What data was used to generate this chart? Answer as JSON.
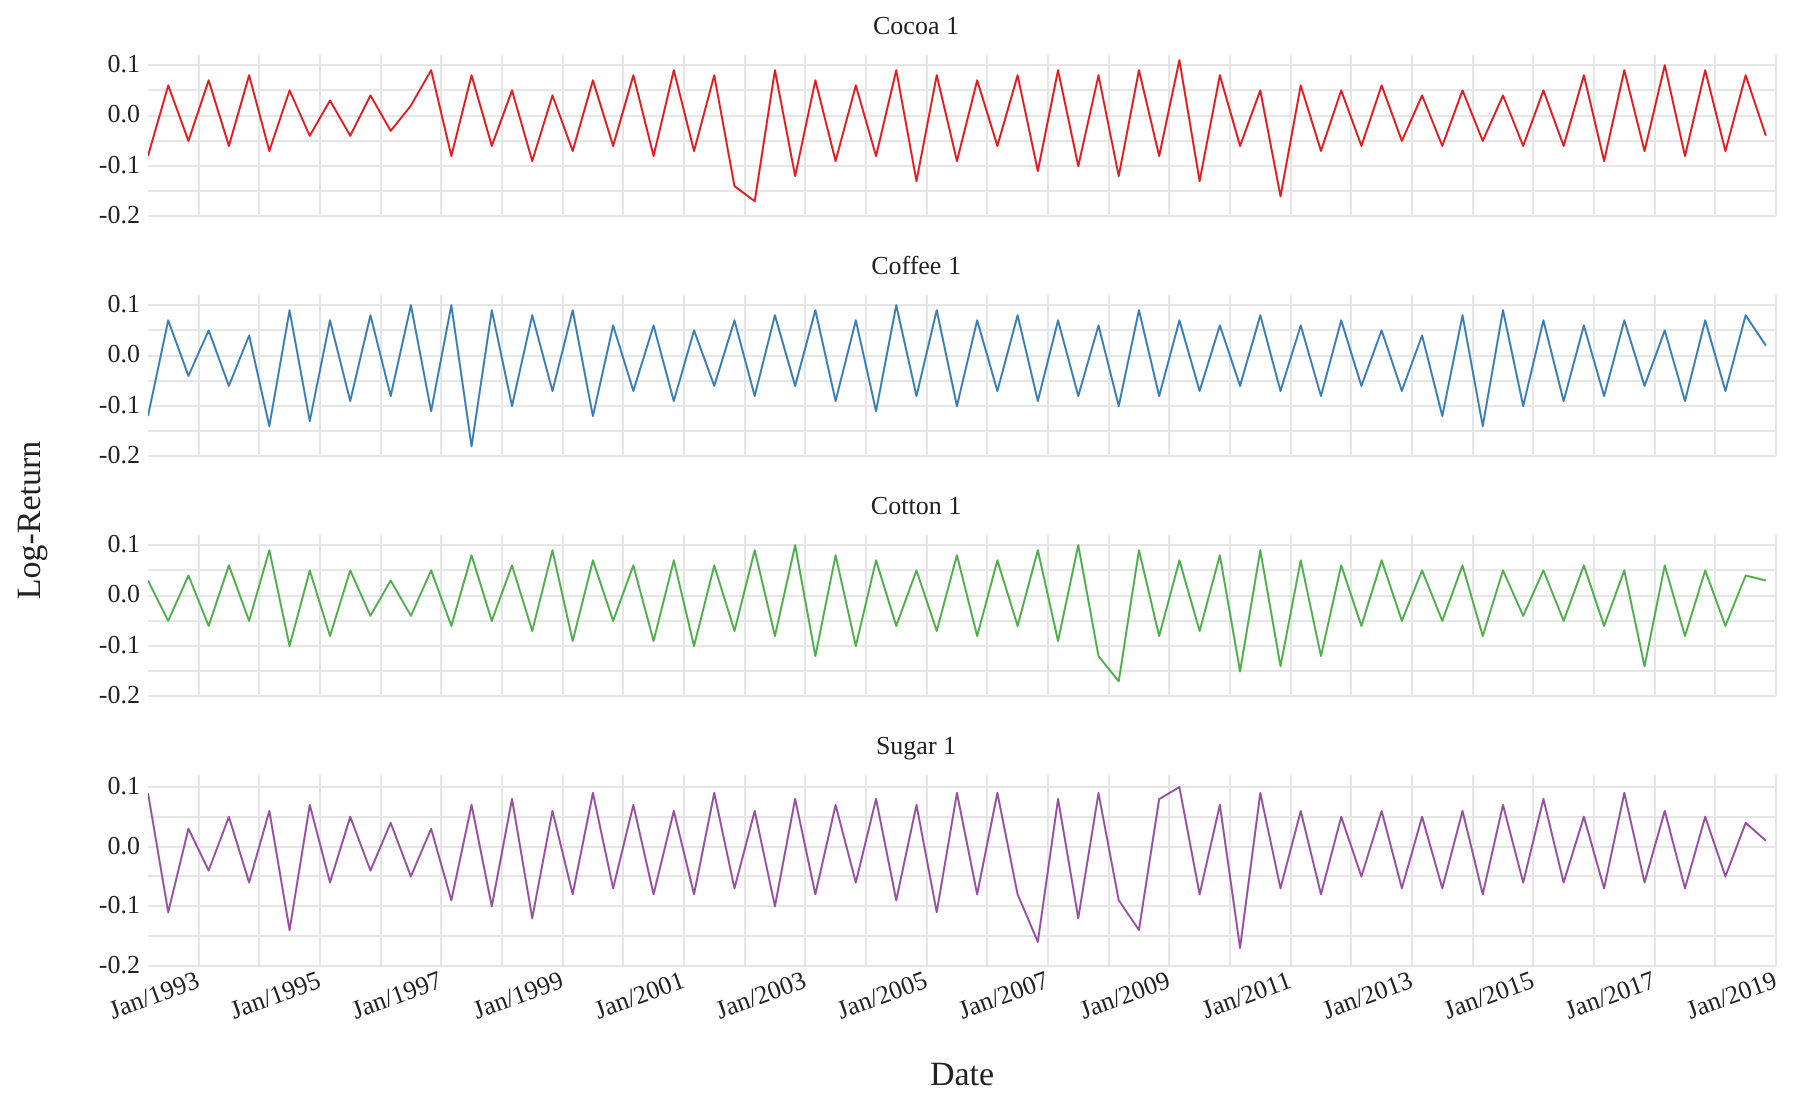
{
  "chart_data": [
    {
      "type": "line",
      "title": "Cocoa 1",
      "color": "#e41a1c",
      "grid": true,
      "tick_labels": "y",
      "x": [
        "1992-03",
        "1992-07",
        "1992-11",
        "1993-03",
        "1993-07",
        "1993-11",
        "1994-03",
        "1994-07",
        "1994-11",
        "1995-03",
        "1995-07",
        "1995-11",
        "1996-03",
        "1996-07",
        "1996-11",
        "1997-03",
        "1997-07",
        "1997-11",
        "1998-03",
        "1998-07",
        "1998-11",
        "1999-03",
        "1999-07",
        "1999-11",
        "2000-03",
        "2000-07",
        "2000-11",
        "2001-03",
        "2001-07",
        "2001-11",
        "2002-03",
        "2002-07",
        "2002-11",
        "2003-03",
        "2003-07",
        "2003-11",
        "2004-03",
        "2004-07",
        "2004-11",
        "2005-03",
        "2005-07",
        "2005-11",
        "2006-03",
        "2006-07",
        "2006-11",
        "2007-03",
        "2007-07",
        "2007-11",
        "2008-03",
        "2008-07",
        "2008-11",
        "2009-03",
        "2009-07",
        "2009-11",
        "2010-03",
        "2010-07",
        "2010-11",
        "2011-03",
        "2011-07",
        "2011-11",
        "2012-03",
        "2012-07",
        "2012-11",
        "2013-03",
        "2013-07",
        "2013-11",
        "2014-03",
        "2014-07",
        "2014-11",
        "2015-03",
        "2015-07",
        "2015-11",
        "2016-03",
        "2016-07",
        "2016-11",
        "2017-03",
        "2017-07",
        "2017-11",
        "2018-03",
        "2018-07",
        "2018-11"
      ],
      "values": [
        -0.08,
        0.06,
        -0.05,
        0.07,
        -0.06,
        0.08,
        -0.07,
        0.05,
        -0.04,
        0.03,
        -0.04,
        0.04,
        -0.03,
        0.02,
        0.09,
        -0.08,
        0.08,
        -0.06,
        0.05,
        -0.09,
        0.04,
        -0.07,
        0.07,
        -0.06,
        0.08,
        -0.08,
        0.09,
        -0.07,
        0.08,
        -0.14,
        -0.17,
        0.09,
        -0.12,
        0.07,
        -0.09,
        0.06,
        -0.08,
        0.09,
        -0.13,
        0.08,
        -0.09,
        0.07,
        -0.06,
        0.08,
        -0.11,
        0.09,
        -0.1,
        0.08,
        -0.12,
        0.09,
        -0.08,
        0.11,
        -0.13,
        0.08,
        -0.06,
        0.05,
        -0.16,
        0.06,
        -0.07,
        0.05,
        -0.06,
        0.06,
        -0.05,
        0.04,
        -0.06,
        0.05,
        -0.05,
        0.04,
        -0.06,
        0.05,
        -0.06,
        0.08,
        -0.09,
        0.09,
        -0.07,
        0.1,
        -0.08,
        0.09,
        -0.07,
        0.08,
        -0.04
      ],
      "xlim": [
        "1992-03",
        "2019-01"
      ],
      "xticks": [
        {
          "value": "1993-01",
          "label": null
        },
        {
          "value": "1994-01",
          "label": null
        },
        {
          "value": "1995-01",
          "label": null
        },
        {
          "value": "1996-01",
          "label": null
        },
        {
          "value": "1997-01",
          "label": null
        },
        {
          "value": "1998-01",
          "label": null
        },
        {
          "value": "1999-01",
          "label": null
        },
        {
          "value": "2000-01",
          "label": null
        },
        {
          "value": "2001-01",
          "label": null
        },
        {
          "value": "2002-01",
          "label": null
        },
        {
          "value": "2003-01",
          "label": null
        },
        {
          "value": "2004-01",
          "label": null
        },
        {
          "value": "2005-01",
          "label": null
        },
        {
          "value": "2006-01",
          "label": null
        },
        {
          "value": "2007-01",
          "label": null
        },
        {
          "value": "2008-01",
          "label": null
        },
        {
          "value": "2009-01",
          "label": null
        },
        {
          "value": "2010-01",
          "label": null
        },
        {
          "value": "2011-01",
          "label": null
        },
        {
          "value": "2012-01",
          "label": null
        },
        {
          "value": "2013-01",
          "label": null
        },
        {
          "value": "2014-01",
          "label": null
        },
        {
          "value": "2015-01",
          "label": null
        },
        {
          "value": "2016-01",
          "label": null
        },
        {
          "value": "2017-01",
          "label": null
        },
        {
          "value": "2018-01",
          "label": null
        },
        {
          "value": "2019-01",
          "label": null
        }
      ],
      "ylim": [
        -0.2,
        0.12
      ],
      "yticks": [
        -0.2,
        {
          "value": -0.15,
          "label": null
        },
        -0.1,
        {
          "value": -0.05,
          "label": null
        },
        {
          "value": 0,
          "label": "0.0"
        },
        {
          "value": 0.05,
          "label": null
        },
        0.1
      ]
    },
    {
      "type": "line",
      "title": "Coffee 1",
      "color": "#377eb8",
      "grid": true,
      "tick_labels": "y",
      "ylabel": "Log-Return",
      "x": [
        "1992-03",
        "1992-07",
        "1992-11",
        "1993-03",
        "1993-07",
        "1993-11",
        "1994-03",
        "1994-07",
        "1994-11",
        "1995-03",
        "1995-07",
        "1995-11",
        "1996-03",
        "1996-07",
        "1996-11",
        "1997-03",
        "1997-07",
        "1997-11",
        "1998-03",
        "1998-07",
        "1998-11",
        "1999-03",
        "1999-07",
        "1999-11",
        "2000-03",
        "2000-07",
        "2000-11",
        "2001-03",
        "2001-07",
        "2001-11",
        "2002-03",
        "2002-07",
        "2002-11",
        "2003-03",
        "2003-07",
        "2003-11",
        "2004-03",
        "2004-07",
        "2004-11",
        "2005-03",
        "2005-07",
        "2005-11",
        "2006-03",
        "2006-07",
        "2006-11",
        "2007-03",
        "2007-07",
        "2007-11",
        "2008-03",
        "2008-07",
        "2008-11",
        "2009-03",
        "2009-07",
        "2009-11",
        "2010-03",
        "2010-07",
        "2010-11",
        "2011-03",
        "2011-07",
        "2011-11",
        "2012-03",
        "2012-07",
        "2012-11",
        "2013-03",
        "2013-07",
        "2013-11",
        "2014-03",
        "2014-07",
        "2014-11",
        "2015-03",
        "2015-07",
        "2015-11",
        "2016-03",
        "2016-07",
        "2016-11",
        "2017-03",
        "2017-07",
        "2017-11",
        "2018-03",
        "2018-07",
        "2018-11"
      ],
      "values": [
        -0.12,
        0.07,
        -0.04,
        0.05,
        -0.06,
        0.04,
        -0.14,
        0.09,
        -0.13,
        0.07,
        -0.09,
        0.08,
        -0.08,
        0.1,
        -0.11,
        0.1,
        -0.18,
        0.09,
        -0.1,
        0.08,
        -0.07,
        0.09,
        -0.12,
        0.06,
        -0.07,
        0.06,
        -0.09,
        0.05,
        -0.06,
        0.07,
        -0.08,
        0.08,
        -0.06,
        0.09,
        -0.09,
        0.07,
        -0.11,
        0.1,
        -0.08,
        0.09,
        -0.1,
        0.07,
        -0.07,
        0.08,
        -0.09,
        0.07,
        -0.08,
        0.06,
        -0.1,
        0.09,
        -0.08,
        0.07,
        -0.07,
        0.06,
        -0.06,
        0.08,
        -0.07,
        0.06,
        -0.08,
        0.07,
        -0.06,
        0.05,
        -0.07,
        0.04,
        -0.12,
        0.08,
        -0.14,
        0.09,
        -0.1,
        0.07,
        -0.09,
        0.06,
        -0.08,
        0.07,
        -0.06,
        0.05,
        -0.09,
        0.07,
        -0.07,
        0.08,
        0.02
      ],
      "xlim": [
        "1992-03",
        "2019-01"
      ],
      "xticks": [
        {
          "value": "1993-01",
          "label": null
        },
        {
          "value": "1994-01",
          "label": null
        },
        {
          "value": "1995-01",
          "label": null
        },
        {
          "value": "1996-01",
          "label": null
        },
        {
          "value": "1997-01",
          "label": null
        },
        {
          "value": "1998-01",
          "label": null
        },
        {
          "value": "1999-01",
          "label": null
        },
        {
          "value": "2000-01",
          "label": null
        },
        {
          "value": "2001-01",
          "label": null
        },
        {
          "value": "2002-01",
          "label": null
        },
        {
          "value": "2003-01",
          "label": null
        },
        {
          "value": "2004-01",
          "label": null
        },
        {
          "value": "2005-01",
          "label": null
        },
        {
          "value": "2006-01",
          "label": null
        },
        {
          "value": "2007-01",
          "label": null
        },
        {
          "value": "2008-01",
          "label": null
        },
        {
          "value": "2009-01",
          "label": null
        },
        {
          "value": "2010-01",
          "label": null
        },
        {
          "value": "2011-01",
          "label": null
        },
        {
          "value": "2012-01",
          "label": null
        },
        {
          "value": "2013-01",
          "label": null
        },
        {
          "value": "2014-01",
          "label": null
        },
        {
          "value": "2015-01",
          "label": null
        },
        {
          "value": "2016-01",
          "label": null
        },
        {
          "value": "2017-01",
          "label": null
        },
        {
          "value": "2018-01",
          "label": null
        },
        {
          "value": "2019-01",
          "label": null
        }
      ],
      "ylim": [
        -0.2,
        0.12
      ],
      "yticks": [
        -0.2,
        {
          "value": -0.15,
          "label": null
        },
        -0.1,
        {
          "value": -0.05,
          "label": null
        },
        {
          "value": 0,
          "label": "0.0"
        },
        {
          "value": 0.05,
          "label": null
        },
        0.1
      ]
    },
    {
      "type": "line",
      "title": "Cotton 1",
      "color": "#4daf4a",
      "grid": true,
      "tick_labels": "y",
      "x": [
        "1992-03",
        "1992-07",
        "1992-11",
        "1993-03",
        "1993-07",
        "1993-11",
        "1994-03",
        "1994-07",
        "1994-11",
        "1995-03",
        "1995-07",
        "1995-11",
        "1996-03",
        "1996-07",
        "1996-11",
        "1997-03",
        "1997-07",
        "1997-11",
        "1998-03",
        "1998-07",
        "1998-11",
        "1999-03",
        "1999-07",
        "1999-11",
        "2000-03",
        "2000-07",
        "2000-11",
        "2001-03",
        "2001-07",
        "2001-11",
        "2002-03",
        "2002-07",
        "2002-11",
        "2003-03",
        "2003-07",
        "2003-11",
        "2004-03",
        "2004-07",
        "2004-11",
        "2005-03",
        "2005-07",
        "2005-11",
        "2006-03",
        "2006-07",
        "2006-11",
        "2007-03",
        "2007-07",
        "2007-11",
        "2008-03",
        "2008-07",
        "2008-11",
        "2009-03",
        "2009-07",
        "2009-11",
        "2010-03",
        "2010-07",
        "2010-11",
        "2011-03",
        "2011-07",
        "2011-11",
        "2012-03",
        "2012-07",
        "2012-11",
        "2013-03",
        "2013-07",
        "2013-11",
        "2014-03",
        "2014-07",
        "2014-11",
        "2015-03",
        "2015-07",
        "2015-11",
        "2016-03",
        "2016-07",
        "2016-11",
        "2017-03",
        "2017-07",
        "2017-11",
        "2018-03",
        "2018-07",
        "2018-11"
      ],
      "values": [
        0.03,
        -0.05,
        0.04,
        -0.06,
        0.06,
        -0.05,
        0.09,
        -0.1,
        0.05,
        -0.08,
        0.05,
        -0.04,
        0.03,
        -0.04,
        0.05,
        -0.06,
        0.08,
        -0.05,
        0.06,
        -0.07,
        0.09,
        -0.09,
        0.07,
        -0.05,
        0.06,
        -0.09,
        0.07,
        -0.1,
        0.06,
        -0.07,
        0.09,
        -0.08,
        0.1,
        -0.12,
        0.08,
        -0.1,
        0.07,
        -0.06,
        0.05,
        -0.07,
        0.08,
        -0.08,
        0.07,
        -0.06,
        0.09,
        -0.09,
        0.1,
        -0.12,
        -0.17,
        0.09,
        -0.08,
        0.07,
        -0.07,
        0.08,
        -0.15,
        0.09,
        -0.14,
        0.07,
        -0.12,
        0.06,
        -0.06,
        0.07,
        -0.05,
        0.05,
        -0.05,
        0.06,
        -0.08,
        0.05,
        -0.04,
        0.05,
        -0.05,
        0.06,
        -0.06,
        0.05,
        -0.14,
        0.06,
        -0.08,
        0.05,
        -0.06,
        0.04,
        0.03
      ],
      "xlim": [
        "1992-03",
        "2019-01"
      ],
      "xticks": [
        {
          "value": "1993-01",
          "label": null
        },
        {
          "value": "1994-01",
          "label": null
        },
        {
          "value": "1995-01",
          "label": null
        },
        {
          "value": "1996-01",
          "label": null
        },
        {
          "value": "1997-01",
          "label": null
        },
        {
          "value": "1998-01",
          "label": null
        },
        {
          "value": "1999-01",
          "label": null
        },
        {
          "value": "2000-01",
          "label": null
        },
        {
          "value": "2001-01",
          "label": null
        },
        {
          "value": "2002-01",
          "label": null
        },
        {
          "value": "2003-01",
          "label": null
        },
        {
          "value": "2004-01",
          "label": null
        },
        {
          "value": "2005-01",
          "label": null
        },
        {
          "value": "2006-01",
          "label": null
        },
        {
          "value": "2007-01",
          "label": null
        },
        {
          "value": "2008-01",
          "label": null
        },
        {
          "value": "2009-01",
          "label": null
        },
        {
          "value": "2010-01",
          "label": null
        },
        {
          "value": "2011-01",
          "label": null
        },
        {
          "value": "2012-01",
          "label": null
        },
        {
          "value": "2013-01",
          "label": null
        },
        {
          "value": "2014-01",
          "label": null
        },
        {
          "value": "2015-01",
          "label": null
        },
        {
          "value": "2016-01",
          "label": null
        },
        {
          "value": "2017-01",
          "label": null
        },
        {
          "value": "2018-01",
          "label": null
        },
        {
          "value": "2019-01",
          "label": null
        }
      ],
      "ylim": [
        -0.2,
        0.12
      ],
      "yticks": [
        -0.2,
        {
          "value": -0.15,
          "label": null
        },
        -0.1,
        {
          "value": -0.05,
          "label": null
        },
        {
          "value": 0,
          "label": "0.0"
        },
        {
          "value": 0.05,
          "label": null
        },
        0.1
      ]
    },
    {
      "type": "line",
      "title": "Sugar 1",
      "color": "#984ea3",
      "grid": true,
      "xlabel": "Date",
      "x": [
        "1992-03",
        "1992-07",
        "1992-11",
        "1993-03",
        "1993-07",
        "1993-11",
        "1994-03",
        "1994-07",
        "1994-11",
        "1995-03",
        "1995-07",
        "1995-11",
        "1996-03",
        "1996-07",
        "1996-11",
        "1997-03",
        "1997-07",
        "1997-11",
        "1998-03",
        "1998-07",
        "1998-11",
        "1999-03",
        "1999-07",
        "1999-11",
        "2000-03",
        "2000-07",
        "2000-11",
        "2001-03",
        "2001-07",
        "2001-11",
        "2002-03",
        "2002-07",
        "2002-11",
        "2003-03",
        "2003-07",
        "2003-11",
        "2004-03",
        "2004-07",
        "2004-11",
        "2005-03",
        "2005-07",
        "2005-11",
        "2006-03",
        "2006-07",
        "2006-11",
        "2007-03",
        "2007-07",
        "2007-11",
        "2008-03",
        "2008-07",
        "2008-11",
        "2009-03",
        "2009-07",
        "2009-11",
        "2010-03",
        "2010-07",
        "2010-11",
        "2011-03",
        "2011-07",
        "2011-11",
        "2012-03",
        "2012-07",
        "2012-11",
        "2013-03",
        "2013-07",
        "2013-11",
        "2014-03",
        "2014-07",
        "2014-11",
        "2015-03",
        "2015-07",
        "2015-11",
        "2016-03",
        "2016-07",
        "2016-11",
        "2017-03",
        "2017-07",
        "2017-11",
        "2018-03",
        "2018-07",
        "2018-11"
      ],
      "values": [
        0.09,
        -0.11,
        0.03,
        -0.04,
        0.05,
        -0.06,
        0.06,
        -0.14,
        0.07,
        -0.06,
        0.05,
        -0.04,
        0.04,
        -0.05,
        0.03,
        -0.09,
        0.07,
        -0.1,
        0.08,
        -0.12,
        0.06,
        -0.08,
        0.09,
        -0.07,
        0.07,
        -0.08,
        0.06,
        -0.08,
        0.09,
        -0.07,
        0.06,
        -0.1,
        0.08,
        -0.08,
        0.07,
        -0.06,
        0.08,
        -0.09,
        0.07,
        -0.11,
        0.09,
        -0.08,
        0.09,
        -0.08,
        -0.16,
        0.08,
        -0.12,
        0.09,
        -0.09,
        -0.14,
        0.08,
        0.1,
        -0.08,
        0.07,
        -0.17,
        0.09,
        -0.07,
        0.06,
        -0.08,
        0.05,
        -0.05,
        0.06,
        -0.07,
        0.05,
        -0.07,
        0.06,
        -0.08,
        0.07,
        -0.06,
        0.08,
        -0.06,
        0.05,
        -0.07,
        0.09,
        -0.06,
        0.06,
        -0.07,
        0.05,
        -0.05,
        0.04,
        0.01
      ],
      "xlim": [
        "1992-03",
        "2019-01"
      ],
      "xticks": [
        {
          "value": "1993-01",
          "label": "Jan/1993"
        },
        {
          "value": "1994-01",
          "label": null
        },
        {
          "value": "1995-01",
          "label": "Jan/1995"
        },
        {
          "value": "1996-01",
          "label": null
        },
        {
          "value": "1997-01",
          "label": "Jan/1997"
        },
        {
          "value": "1998-01",
          "label": null
        },
        {
          "value": "1999-01",
          "label": "Jan/1999"
        },
        {
          "value": "2000-01",
          "label": null
        },
        {
          "value": "2001-01",
          "label": "Jan/2001"
        },
        {
          "value": "2002-01",
          "label": null
        },
        {
          "value": "2003-01",
          "label": "Jan/2003"
        },
        {
          "value": "2004-01",
          "label": null
        },
        {
          "value": "2005-01",
          "label": "Jan/2005"
        },
        {
          "value": "2006-01",
          "label": null
        },
        {
          "value": "2007-01",
          "label": "Jan/2007"
        },
        {
          "value": "2008-01",
          "label": null
        },
        {
          "value": "2009-01",
          "label": "Jan/2009"
        },
        {
          "value": "2010-01",
          "label": null
        },
        {
          "value": "2011-01",
          "label": "Jan/2011"
        },
        {
          "value": "2012-01",
          "label": null
        },
        {
          "value": "2013-01",
          "label": "Jan/2013"
        },
        {
          "value": "2014-01",
          "label": null
        },
        {
          "value": "2015-01",
          "label": "Jan/2015"
        },
        {
          "value": "2016-01",
          "label": null
        },
        {
          "value": "2017-01",
          "label": "Jan/2017"
        },
        {
          "value": "2018-01",
          "label": null
        },
        {
          "value": "2019-01",
          "label": "Jan/2019"
        }
      ],
      "ylim": [
        -0.2,
        0.12
      ],
      "yticks": [
        -0.2,
        {
          "value": -0.15,
          "label": null
        },
        -0.1,
        {
          "value": -0.05,
          "label": null
        },
        {
          "value": 0,
          "label": "0.0"
        },
        {
          "value": 0.05,
          "label": null
        },
        0.1
      ]
    }
  ]
}
